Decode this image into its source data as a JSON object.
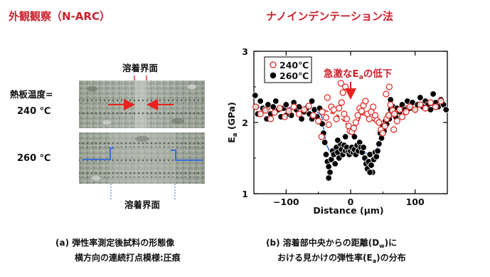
{
  "left": {
    "title": "外観観察（N-ARC）",
    "interface_top": "溶着界面",
    "temp_label_line1": "熱板温度=",
    "temp_label_line2": "240 ℃",
    "temp_260": "260 ℃",
    "interface_bottom": "溶着界面",
    "caption_line1": "(a) 弾性率測定後試料の形態像",
    "caption_line2": "横方向の連続打点模様:圧痕"
  },
  "right": {
    "title": "ナノインデンテーション法",
    "annotation_prefix": "急激なE",
    "annotation_sub": "a",
    "annotation_suffix": "の低下",
    "caption_line1_a": "(b) 溶着部中央からの距離(D",
    "caption_line1_sub": "w",
    "caption_line1_b": ")に",
    "caption_line2_a": "おける見かけの弾性率(E",
    "caption_line2_sub": "a",
    "caption_line2_b": ")の分布"
  },
  "colors": {
    "title_red": "#cc1f2b",
    "arrow_red": "#e8211e",
    "series_240": "#e0231f",
    "series_260": "#000000",
    "fit_260": "#3a6fd8",
    "fit_240": "#e0231f"
  },
  "chart_data": {
    "type": "scatter",
    "xlabel_a": "Distance (",
    "xlabel_mu": "μ",
    "xlabel_b": "m)",
    "ylabel_a": "E",
    "ylabel_sub": "a",
    "ylabel_b": " (GPa)",
    "xlim": [
      -150,
      150
    ],
    "ylim": [
      1,
      3
    ],
    "xticks": [
      -100,
      0,
      100
    ],
    "xtick_labels": [
      "−100",
      "0",
      "100"
    ],
    "yticks": [
      1,
      2,
      3
    ],
    "ytick_labels": [
      "1",
      "2",
      "3"
    ],
    "grid": false,
    "legend_position": "top-left",
    "series": [
      {
        "name": "240℃",
        "marker": "open-circle",
        "points": [
          [
            -147,
            2.22
          ],
          [
            -140,
            2.12
          ],
          [
            -132,
            2.17
          ],
          [
            -124,
            2.05
          ],
          [
            -118,
            2.14
          ],
          [
            -110,
            2.2
          ],
          [
            -102,
            2.08
          ],
          [
            -96,
            2.16
          ],
          [
            -88,
            2.22
          ],
          [
            -80,
            2.12
          ],
          [
            -72,
            2.18
          ],
          [
            -65,
            2.23
          ],
          [
            -58,
            2.1
          ],
          [
            -50,
            2.02
          ],
          [
            -44,
            2.15
          ],
          [
            -38,
            2.07
          ],
          [
            -34,
            1.97
          ],
          [
            -30,
            2.22
          ],
          [
            -26,
            2.18
          ],
          [
            -22,
            2.05
          ],
          [
            -18,
            2.2
          ],
          [
            -14,
            2.28
          ],
          [
            -10,
            2.12
          ],
          [
            -6,
            2.05
          ],
          [
            -3,
            1.95
          ],
          [
            -1,
            1.88
          ],
          [
            2,
            1.87
          ],
          [
            5,
            1.92
          ],
          [
            8,
            2.0
          ],
          [
            11,
            2.1
          ],
          [
            14,
            2.2
          ],
          [
            17,
            2.16
          ],
          [
            20,
            2.24
          ],
          [
            23,
            2.3
          ],
          [
            26,
            2.12
          ],
          [
            29,
            2.05
          ],
          [
            32,
            2.15
          ],
          [
            35,
            2.22
          ],
          [
            38,
            2.1
          ],
          [
            41,
            2.03
          ],
          [
            44,
            2.0
          ],
          [
            47,
            1.9
          ],
          [
            50,
            1.85
          ],
          [
            53,
            1.95
          ],
          [
            56,
            2.05
          ],
          [
            59,
            2.1
          ],
          [
            62,
            2.25
          ],
          [
            65,
            2.17
          ],
          [
            68,
            2.12
          ],
          [
            72,
            2.02
          ],
          [
            76,
            2.18
          ],
          [
            80,
            2.08
          ],
          [
            86,
            2.15
          ],
          [
            92,
            2.22
          ],
          [
            100,
            2.18
          ],
          [
            108,
            2.25
          ],
          [
            116,
            2.2
          ],
          [
            124,
            2.28
          ],
          [
            132,
            2.22
          ],
          [
            140,
            2.3
          ],
          [
            -15,
            2.55
          ],
          [
            -8,
            2.5
          ],
          [
            -12,
            2.42
          ],
          [
            55,
            2.4
          ],
          [
            60,
            2.5
          ],
          [
            -45,
            1.8
          ],
          [
            67,
            1.9
          ],
          [
            -36,
            2.35
          ]
        ]
      },
      {
        "name": "260℃",
        "marker": "filled-circle",
        "points": [
          [
            -148,
            2.38
          ],
          [
            -146,
            2.22
          ],
          [
            -144,
            2.12
          ],
          [
            -140,
            2.3
          ],
          [
            -136,
            2.2
          ],
          [
            -132,
            2.18
          ],
          [
            -128,
            2.25
          ],
          [
            -124,
            2.12
          ],
          [
            -120,
            2.22
          ],
          [
            -116,
            2.3
          ],
          [
            -112,
            2.18
          ],
          [
            -108,
            2.08
          ],
          [
            -104,
            2.2
          ],
          [
            -100,
            2.25
          ],
          [
            -96,
            2.15
          ],
          [
            -92,
            2.1
          ],
          [
            -88,
            2.28
          ],
          [
            -84,
            2.18
          ],
          [
            -80,
            2.22
          ],
          [
            -76,
            2.05
          ],
          [
            -72,
            2.15
          ],
          [
            -68,
            2.2
          ],
          [
            -64,
            2.12
          ],
          [
            -60,
            2.3
          ],
          [
            -56,
            2.18
          ],
          [
            -52,
            2.08
          ],
          [
            -48,
            2.2
          ],
          [
            -44,
            1.98
          ],
          [
            -42,
            1.85
          ],
          [
            -40,
            1.72
          ],
          [
            -38,
            1.55
          ],
          [
            -36,
            1.45
          ],
          [
            -34,
            1.38
          ],
          [
            -32,
            1.3
          ],
          [
            -30,
            1.48
          ],
          [
            -28,
            1.6
          ],
          [
            -26,
            1.55
          ],
          [
            -24,
            1.42
          ],
          [
            -22,
            1.65
          ],
          [
            -20,
            1.58
          ],
          [
            -18,
            1.5
          ],
          [
            -16,
            1.7
          ],
          [
            -14,
            1.62
          ],
          [
            -12,
            1.55
          ],
          [
            -10,
            1.68
          ],
          [
            -8,
            1.6
          ],
          [
            -6,
            1.65
          ],
          [
            -4,
            1.58
          ],
          [
            -2,
            1.55
          ],
          [
            0,
            1.6
          ],
          [
            2,
            1.65
          ],
          [
            4,
            1.58
          ],
          [
            6,
            1.62
          ],
          [
            8,
            1.55
          ],
          [
            10,
            1.68
          ],
          [
            12,
            1.6
          ],
          [
            14,
            1.72
          ],
          [
            16,
            1.65
          ],
          [
            18,
            1.58
          ],
          [
            20,
            1.65
          ],
          [
            22,
            1.5
          ],
          [
            24,
            1.42
          ],
          [
            26,
            1.35
          ],
          [
            28,
            1.45
          ],
          [
            30,
            1.55
          ],
          [
            32,
            1.4
          ],
          [
            34,
            1.3
          ],
          [
            36,
            1.48
          ],
          [
            38,
            1.58
          ],
          [
            40,
            1.52
          ],
          [
            42,
            1.6
          ],
          [
            44,
            1.7
          ],
          [
            46,
            1.85
          ],
          [
            48,
            1.78
          ],
          [
            50,
            1.95
          ],
          [
            52,
            1.88
          ],
          [
            54,
            2.02
          ],
          [
            56,
            1.98
          ],
          [
            58,
            2.1
          ],
          [
            60,
            2.05
          ],
          [
            62,
            2.18
          ],
          [
            64,
            2.12
          ],
          [
            66,
            2.22
          ],
          [
            68,
            2.15
          ],
          [
            70,
            2.08
          ],
          [
            72,
            2.2
          ],
          [
            76,
            2.15
          ],
          [
            80,
            2.25
          ],
          [
            84,
            2.18
          ],
          [
            88,
            2.3
          ],
          [
            92,
            2.2
          ],
          [
            96,
            2.28
          ],
          [
            100,
            2.18
          ],
          [
            104,
            2.25
          ],
          [
            108,
            2.35
          ],
          [
            112,
            2.22
          ],
          [
            116,
            2.3
          ],
          [
            120,
            2.25
          ],
          [
            124,
            2.18
          ],
          [
            128,
            2.4
          ],
          [
            132,
            2.28
          ],
          [
            136,
            2.22
          ],
          [
            140,
            2.32
          ],
          [
            144,
            2.25
          ],
          [
            148,
            2.18
          ],
          [
            -60,
            2.05
          ],
          [
            -100,
            2.1
          ],
          [
            62,
            2.32
          ],
          [
            -130,
            2.05
          ],
          [
            30,
            1.3
          ],
          [
            -34,
            1.22
          ],
          [
            -8,
            1.8
          ],
          [
            6,
            1.8
          ],
          [
            -20,
            1.75
          ]
        ]
      }
    ],
    "fit_lines": [
      {
        "series": "260℃",
        "points": [
          [
            -150,
            2.22
          ],
          [
            -60,
            2.2
          ],
          [
            -45,
            2.1
          ],
          [
            -38,
            1.7
          ],
          [
            -30,
            1.55
          ],
          [
            -15,
            1.6
          ],
          [
            0,
            1.6
          ],
          [
            15,
            1.62
          ],
          [
            28,
            1.55
          ],
          [
            40,
            1.6
          ],
          [
            48,
            1.85
          ],
          [
            56,
            2.1
          ],
          [
            70,
            2.18
          ],
          [
            110,
            2.23
          ],
          [
            150,
            2.25
          ]
        ]
      },
      {
        "series": "240℃",
        "points": [
          [
            -150,
            2.2
          ],
          [
            -40,
            2.17
          ],
          [
            -20,
            2.1
          ],
          [
            -8,
            2.0
          ],
          [
            0,
            1.85
          ],
          [
            8,
            1.95
          ],
          [
            18,
            2.12
          ],
          [
            30,
            2.05
          ],
          [
            45,
            1.98
          ],
          [
            58,
            2.1
          ],
          [
            75,
            2.22
          ],
          [
            100,
            2.25
          ],
          [
            150,
            2.28
          ]
        ]
      }
    ]
  }
}
